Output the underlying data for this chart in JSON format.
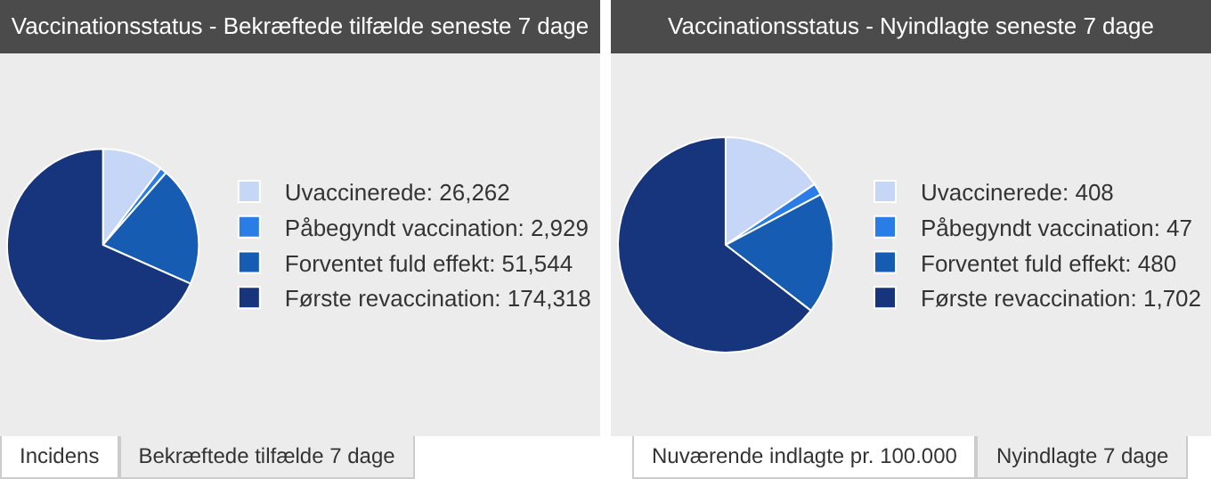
{
  "chart_data": [
    {
      "type": "pie",
      "title": "Vaccinationsstatus - Bekræftede tilfælde seneste 7 dage",
      "categories": [
        "Uvaccinerede",
        "Påbegyndt vaccination",
        "Forventet fuld effekt",
        "Første revaccination"
      ],
      "values": [
        26262,
        2929,
        51544,
        174318
      ],
      "value_labels": [
        "26,262",
        "2,929",
        "51,544",
        "174,318"
      ],
      "colors": [
        "#c6d6f7",
        "#2a7de6",
        "#165cb3",
        "#17357d"
      ],
      "legend": "right",
      "annotations": [
        "Incidens",
        "Bekræftede tilfælde 7 dage"
      ]
    },
    {
      "type": "pie",
      "title": "Vaccinationsstatus - Nyindlagte seneste 7 dage",
      "categories": [
        "Uvaccinerede",
        "Påbegyndt vaccination",
        "Forventet fuld effekt",
        "Første revaccination"
      ],
      "values": [
        408,
        47,
        480,
        1702
      ],
      "value_labels": [
        "408",
        "47",
        "480",
        "1,702"
      ],
      "colors": [
        "#c6d6f7",
        "#2a7de6",
        "#165cb3",
        "#17357d"
      ],
      "legend": "right",
      "annotations": [
        "Nuværende indlagte pr. 100.000",
        "Nyindlagte 7 dage"
      ]
    }
  ]
}
